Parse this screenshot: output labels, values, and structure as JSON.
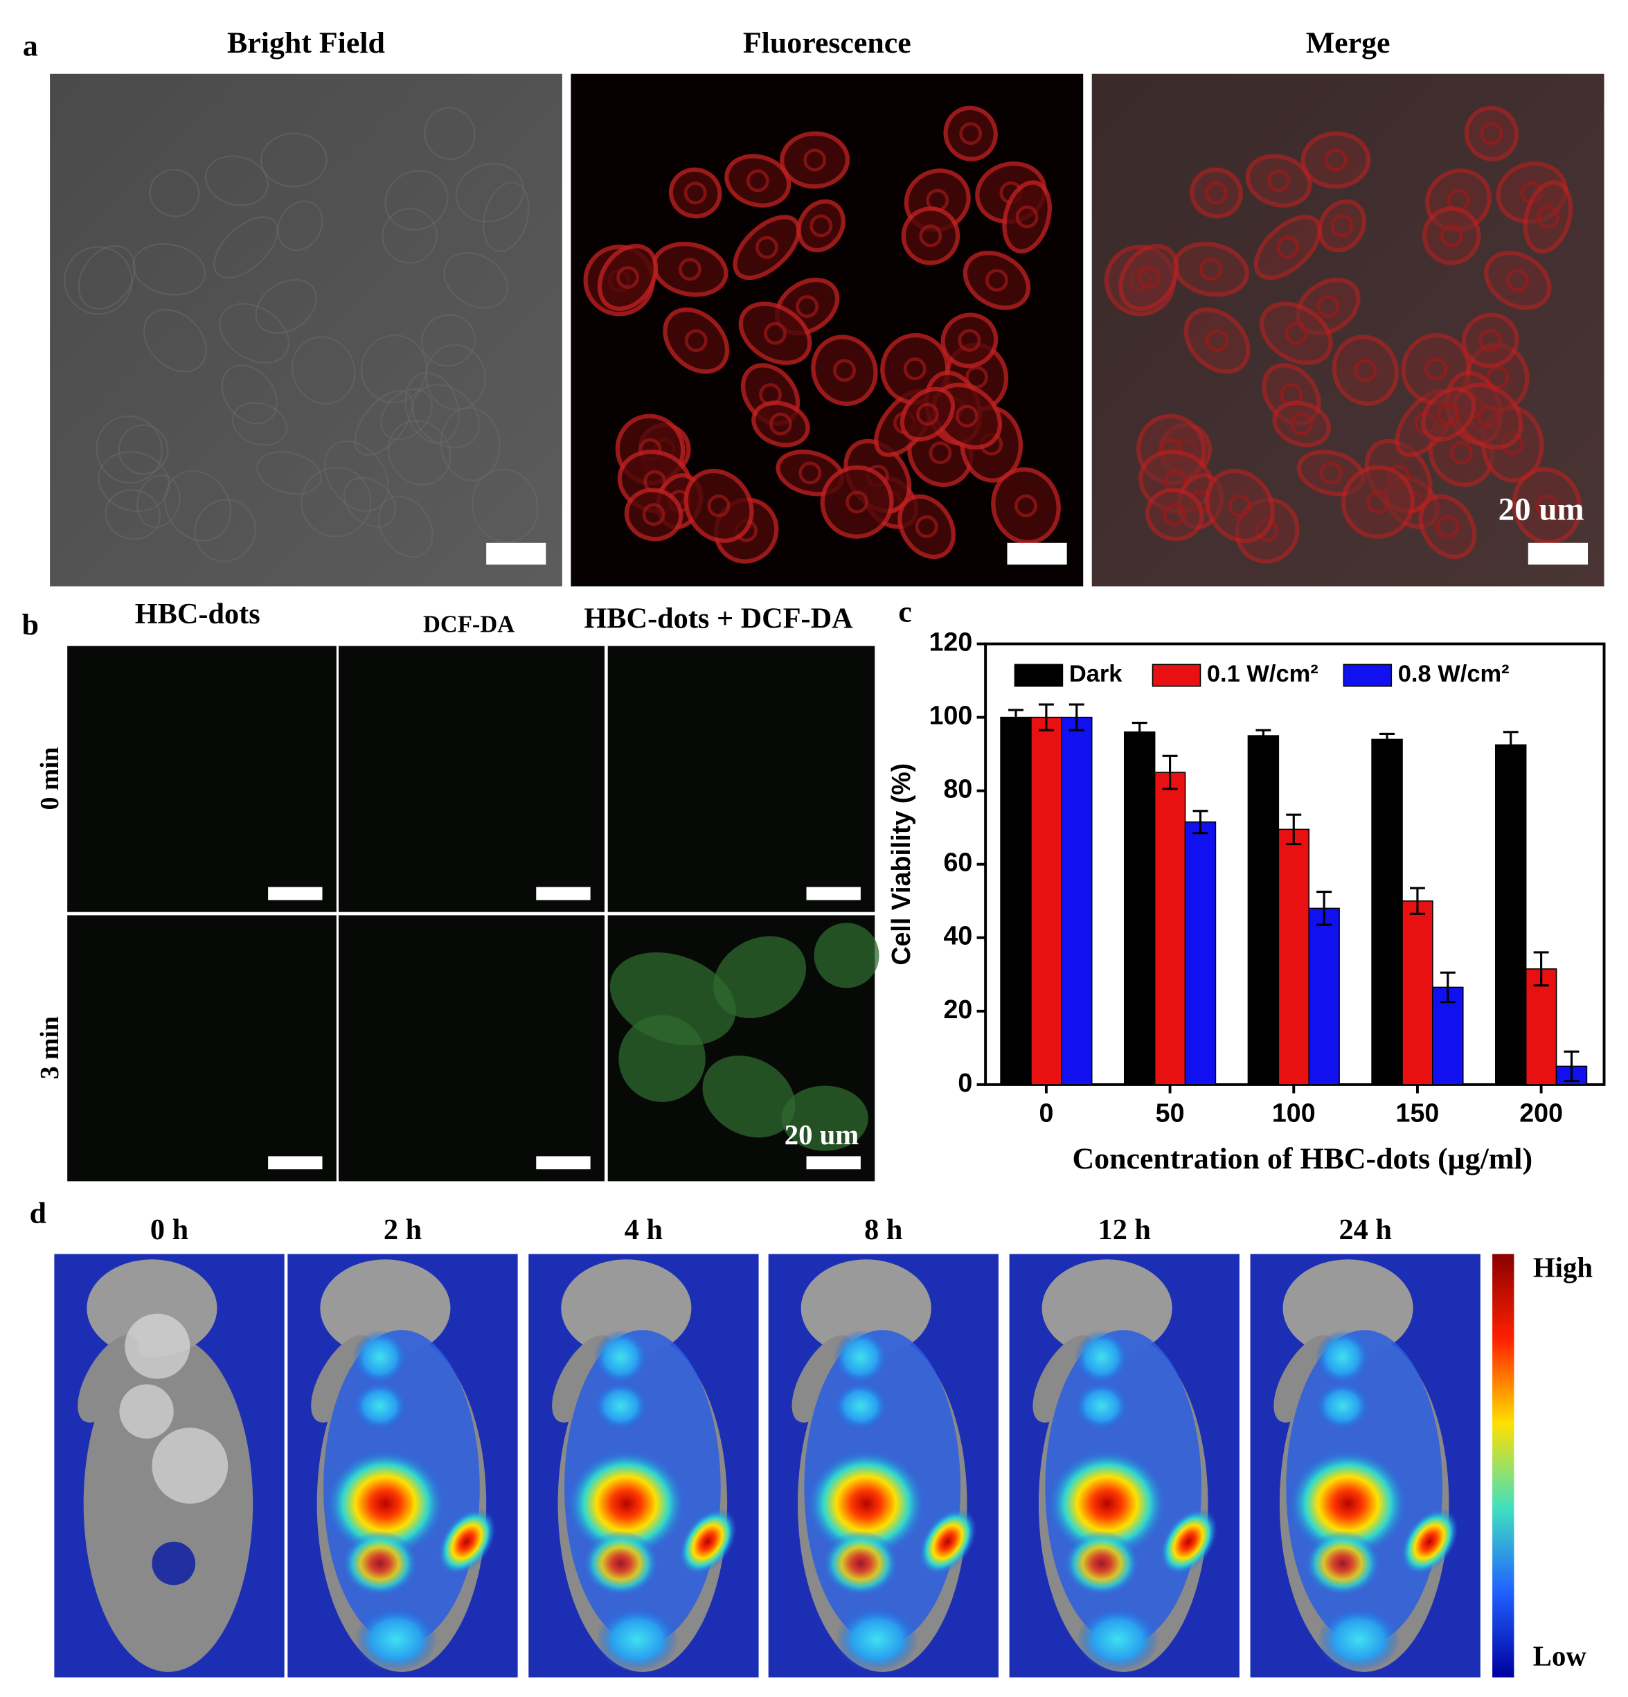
{
  "panel_a": {
    "label": "a",
    "titles": [
      "Bright Field",
      "Fluorescence",
      "Merge"
    ],
    "scale_bar": "20 um"
  },
  "panel_b": {
    "label": "b",
    "columns": [
      "HBC-dots",
      "DCF-DA",
      "HBC-dots + DCF-DA"
    ],
    "rows": [
      "0 min",
      "3 min"
    ],
    "scale_bar": "20 um"
  },
  "chart_data": {
    "type": "bar",
    "panel_label": "c",
    "x_label": "Concentration of HBC-dots (μg/ml)",
    "y_label": "Cell Viability (%)",
    "categories": [
      "0",
      "50",
      "100",
      "150",
      "200"
    ],
    "series": [
      {
        "name": "Dark",
        "color": "#000000",
        "values": [
          100,
          96,
          95,
          94,
          92.5
        ],
        "errors": [
          2,
          2.5,
          1.5,
          1.5,
          3.5
        ]
      },
      {
        "name": "0.1 W/cm²",
        "color": "#e81010",
        "values": [
          100,
          85,
          69.5,
          50,
          31.5
        ],
        "errors": [
          3.5,
          4.5,
          4,
          3.5,
          4.5
        ]
      },
      {
        "name": "0.8 W/cm²",
        "color": "#1010f0",
        "values": [
          100,
          71.5,
          48,
          26.5,
          5
        ],
        "errors": [
          3.5,
          3,
          4.5,
          4,
          4
        ]
      }
    ],
    "ylim": [
      0,
      120
    ],
    "yticks": [
      0,
      20,
      40,
      60,
      80,
      100,
      120
    ],
    "legend": "top"
  },
  "panel_d": {
    "label": "d",
    "times": [
      "0 h",
      "2 h",
      "4 h",
      "8 h",
      "12 h",
      "24 h"
    ],
    "colorbar": {
      "high": "High",
      "low": "Low"
    }
  }
}
